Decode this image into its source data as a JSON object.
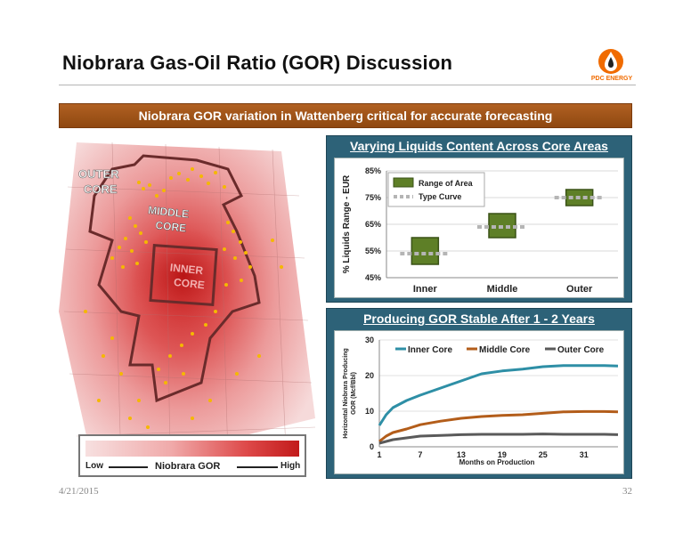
{
  "slide": {
    "title": "Niobrara Gas-Oil Ratio (GOR) Discussion",
    "banner": "Niobrara GOR variation in Wattenberg critical for accurate forecasting",
    "date": "4/21/2015",
    "page": "32",
    "logo_text": "PDC ENERGY",
    "colors": {
      "banner": "#9c5319",
      "panel": "#2d6278",
      "logo": "#f06b00"
    }
  },
  "map": {
    "labels": {
      "outer": [
        "OUTER",
        "CORE"
      ],
      "middle": [
        "MIDDLE",
        "CORE"
      ],
      "inner": [
        "INNER",
        "CORE"
      ]
    },
    "legend": {
      "low": "Low",
      "title": "Niobrara GOR",
      "high": "High"
    }
  },
  "chart_data": [
    {
      "type": "bar",
      "title": "Varying Liquids Content Across Core Areas",
      "ylabel": "% Liquids Range - EUR",
      "ylim": [
        45,
        85
      ],
      "yticks": [
        "85%",
        "75%",
        "65%",
        "55%",
        "45%"
      ],
      "categories": [
        "Inner",
        "Middle",
        "Outer"
      ],
      "range_low": [
        50,
        60,
        72
      ],
      "range_high": [
        60,
        69,
        78
      ],
      "type_curve": [
        54,
        64,
        75
      ],
      "legend": {
        "range": "Range of Area",
        "type_curve": "Type Curve"
      },
      "colors": {
        "range": "#5e7f27",
        "type_curve": "#b5b5b5"
      }
    },
    {
      "type": "line",
      "title": "Producing GOR Stable After 1 - 2 Years",
      "ylabel": [
        "Horizontal Niobrara Producing",
        "GOR (Mcf/Bbl)"
      ],
      "xlabel": "Months on Production",
      "ylim": [
        0,
        30
      ],
      "xlim": [
        1,
        36
      ],
      "yticks": [
        0,
        10,
        20,
        30
      ],
      "xticks": [
        1,
        7,
        13,
        19,
        25,
        31
      ],
      "series": [
        {
          "name": "Inner Core",
          "color": "#2e8fa6",
          "x": [
            1,
            2,
            3,
            5,
            7,
            10,
            13,
            16,
            19,
            22,
            25,
            28,
            31,
            34,
            36
          ],
          "y": [
            6,
            9,
            11,
            13,
            14.5,
            16.5,
            18.5,
            20.5,
            21.3,
            21.8,
            22.5,
            22.8,
            22.8,
            22.8,
            22.7
          ]
        },
        {
          "name": "Middle Core",
          "color": "#b35d1a",
          "x": [
            1,
            2,
            3,
            5,
            7,
            10,
            13,
            16,
            19,
            22,
            25,
            28,
            31,
            34,
            36
          ],
          "y": [
            1.5,
            3,
            4,
            5,
            6.2,
            7.2,
            8,
            8.5,
            8.8,
            9,
            9.4,
            9.8,
            9.9,
            9.9,
            9.8
          ]
        },
        {
          "name": "Outer Core",
          "color": "#5a5a5a",
          "x": [
            1,
            2,
            3,
            5,
            7,
            10,
            13,
            16,
            19,
            22,
            25,
            28,
            31,
            34,
            36
          ],
          "y": [
            1,
            1.5,
            2,
            2.5,
            3,
            3.2,
            3.4,
            3.5,
            3.5,
            3.5,
            3.6,
            3.5,
            3.5,
            3.5,
            3.4
          ]
        }
      ]
    }
  ]
}
